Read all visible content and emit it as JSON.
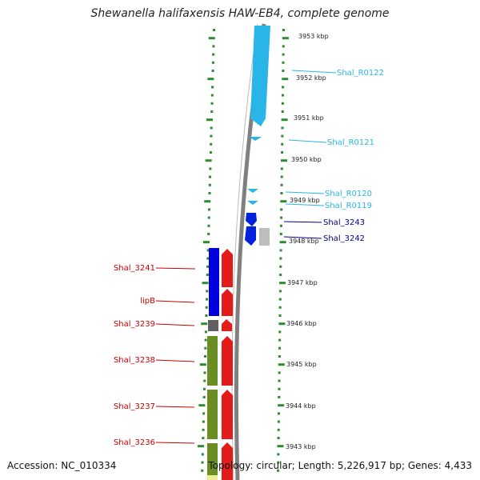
{
  "title": "Shewanella halifaxensis HAW-EB4, complete genome",
  "footer": {
    "accession": "Accession: NC_010334",
    "topology": "Topology: circular; Length: 5,226,917 bp; Genes: 4,433"
  },
  "colors": {
    "ruler": "#2e8b2e",
    "backbone": "#808080",
    "rna": "#29b5e8",
    "cds_blue": "#0000dd",
    "cds_red": "#e31b1b",
    "olive": "#6b8e23",
    "gray_gene": "#666666",
    "label_blue": "#00008b",
    "label_red": "#cc0000"
  },
  "kbp_ticks": [
    "3953 kbp",
    "3952 kbp",
    "3951 kbp",
    "3950 kbp",
    "3949 kbp",
    "3948 kbp",
    "3947 kbp",
    "3946 kbp",
    "3945 kbp",
    "3944 kbp",
    "3943 kbp"
  ],
  "gene_labels": {
    "right": [
      "Shal_R0122",
      "Shal_R0121",
      "Shal_R0120",
      "Shal_R0119",
      "Shal_3243",
      "Shal_3242"
    ],
    "left": [
      "Shal_3241",
      "lipB",
      "Shal_3239",
      "Shal_3238",
      "Shal_3237",
      "Shal_3236"
    ]
  }
}
